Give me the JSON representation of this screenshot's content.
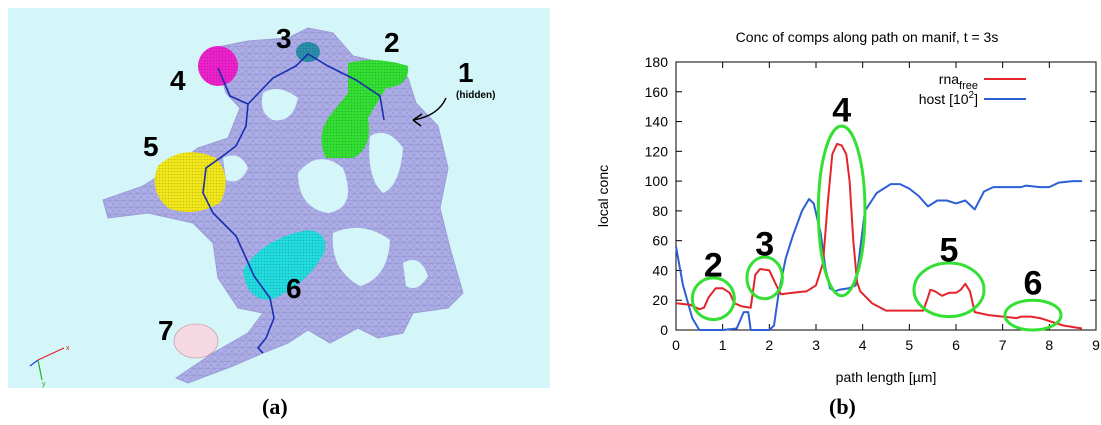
{
  "panel_a": {
    "caption": "(a)",
    "labels": [
      "1",
      "2",
      "3",
      "4",
      "5",
      "6",
      "7"
    ],
    "annotation": "(hidden)",
    "axis_triad": [
      "x",
      "y"
    ]
  },
  "panel_b": {
    "caption": "(b)"
  },
  "chart_data": {
    "type": "line",
    "title": "Conc of comps along path on manif, t = 3s",
    "xlabel": "path length [µm]",
    "ylabel": "local conc",
    "xlim": [
      0,
      9
    ],
    "ylim": [
      0,
      180
    ],
    "xticks": [
      0,
      1,
      2,
      3,
      4,
      5,
      6,
      7,
      8,
      9
    ],
    "yticks": [
      0,
      20,
      40,
      60,
      80,
      100,
      120,
      140,
      160,
      180
    ],
    "grid": false,
    "legend_position": "top-right",
    "series": [
      {
        "name": "rna_free",
        "name_base": "rna",
        "name_sub": "free",
        "color": "#e3242b",
        "x": [
          0,
          0.3,
          0.5,
          0.6,
          0.7,
          0.85,
          1.0,
          1.15,
          1.25,
          1.4,
          1.6,
          1.7,
          1.8,
          2.0,
          2.15,
          2.25,
          2.5,
          2.8,
          3.0,
          3.15,
          3.25,
          3.35,
          3.45,
          3.55,
          3.65,
          3.72,
          3.8,
          3.88,
          3.95,
          4.2,
          4.5,
          5.0,
          5.3,
          5.4,
          5.45,
          5.55,
          5.7,
          5.85,
          6.0,
          6.1,
          6.2,
          6.3,
          6.4,
          6.7,
          7.0,
          7.3,
          7.4,
          7.5,
          7.6,
          7.8,
          7.9,
          8.0,
          8.3,
          8.7
        ],
        "y": [
          18,
          17,
          14,
          15,
          22,
          28,
          28,
          25,
          18,
          16,
          15,
          37,
          41,
          40,
          30,
          24,
          25,
          26,
          30,
          45,
          85,
          118,
          125,
          124,
          118,
          100,
          60,
          32,
          26,
          18,
          13,
          13,
          13,
          22,
          27,
          26,
          23,
          25,
          25,
          27,
          31,
          26,
          12,
          10,
          9,
          8,
          9,
          9,
          9,
          8,
          7,
          6,
          3,
          1
        ]
      },
      {
        "name": "host [10^2]",
        "name_base": "host [10",
        "name_sup": "2",
        "name_tail": "]",
        "color": "#2d5fd4",
        "x": [
          0,
          0.15,
          0.35,
          0.5,
          1.0,
          1.3,
          1.45,
          1.55,
          1.6,
          1.7,
          1.8,
          1.9,
          2.0,
          2.1,
          2.2,
          2.35,
          2.5,
          2.7,
          2.85,
          2.95,
          3.1,
          3.2,
          3.3,
          3.4,
          3.5,
          3.7,
          3.85,
          3.95,
          4.05,
          4.3,
          4.6,
          4.8,
          5.0,
          5.2,
          5.4,
          5.6,
          5.8,
          6.0,
          6.2,
          6.4,
          6.6,
          6.8,
          7.0,
          7.4,
          7.5,
          7.8,
          8.0,
          8.2,
          8.5,
          8.7
        ],
        "y": [
          56,
          30,
          8,
          0,
          0,
          1,
          12,
          12,
          0,
          0,
          0,
          0,
          0,
          3,
          25,
          48,
          63,
          80,
          88,
          85,
          65,
          42,
          28,
          26,
          27,
          28,
          30,
          55,
          80,
          92,
          98,
          98,
          95,
          90,
          83,
          87,
          87,
          85,
          87,
          81,
          93,
          96,
          96,
          96,
          97,
          96,
          96,
          99,
          100,
          100
        ]
      }
    ],
    "annotations": [
      {
        "text": "2",
        "x": 0.8,
        "y": 21,
        "rx": 0.45,
        "ry": 14,
        "label_y": 36
      },
      {
        "text": "3",
        "x": 1.9,
        "y": 35,
        "rx": 0.38,
        "ry": 14,
        "label_y": 50
      },
      {
        "text": "4",
        "x": 3.55,
        "y": 80,
        "rx": 0.5,
        "ry": 57,
        "label_y": 140
      },
      {
        "text": "5",
        "x": 5.85,
        "y": 27,
        "rx": 0.75,
        "ry": 18,
        "label_y": 46
      },
      {
        "text": "6",
        "x": 7.65,
        "y": 10,
        "rx": 0.6,
        "ry": 10,
        "label_y": 24
      }
    ]
  }
}
